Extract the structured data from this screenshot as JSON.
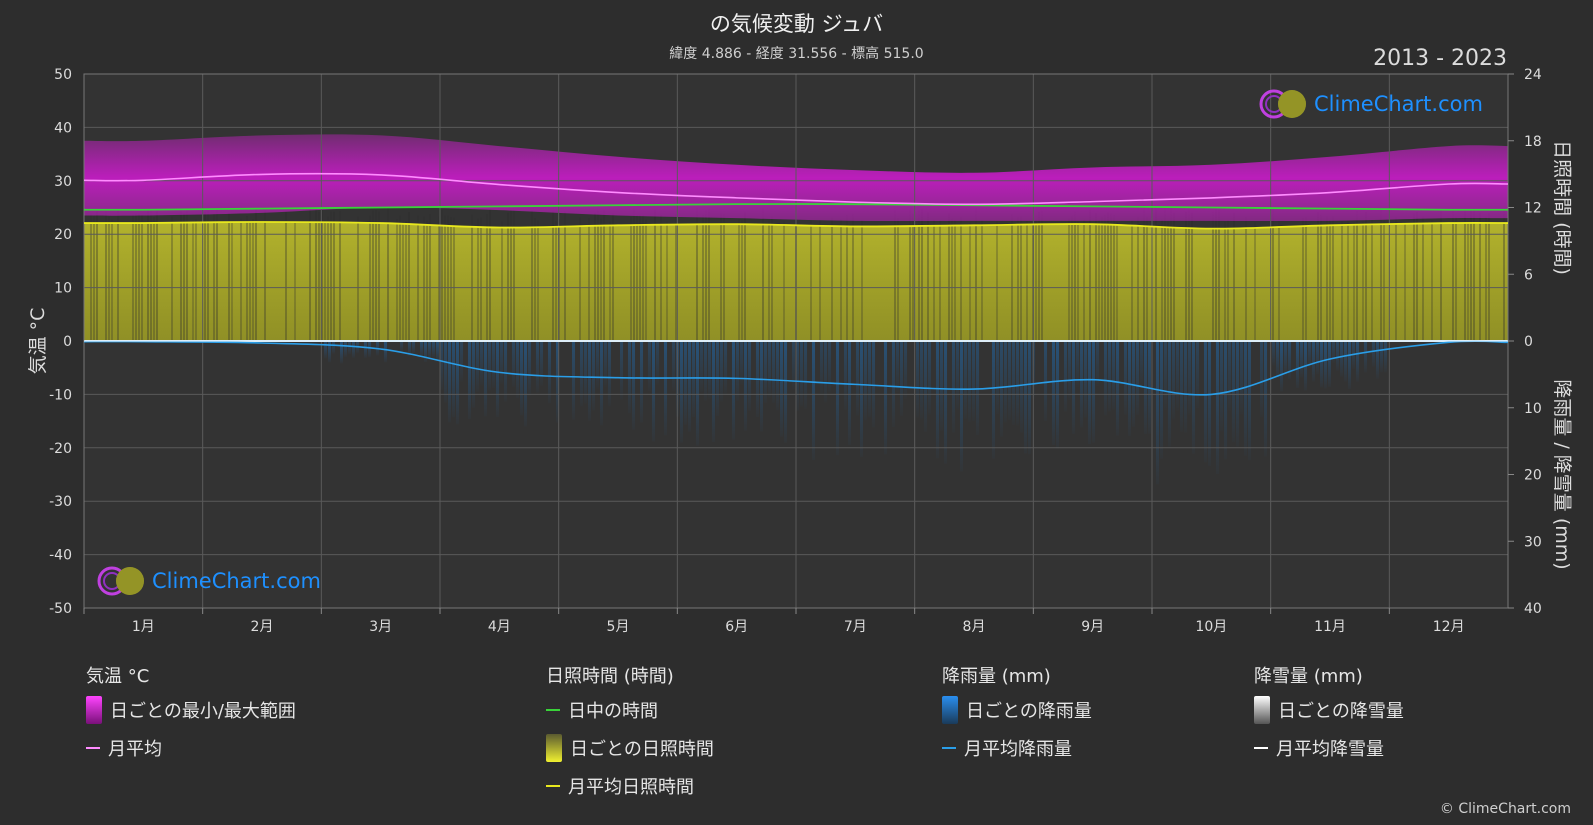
{
  "header": {
    "title": "の気候変動 ジュバ",
    "subtitle": "緯度 4.886 - 経度 31.556 - 標高 515.0",
    "period": "2013 - 2023"
  },
  "brand": {
    "logo_text": "ClimeChart.com",
    "copyright": "© ClimeChart.com"
  },
  "colors": {
    "background": "#2d2d2d",
    "temp_range": "#e21ee2",
    "temp_avg": "#ff8cff",
    "daylight": "#39d339",
    "sunshine_fill": "#b5b52a",
    "sunshine_avg": "#e8e81e",
    "rain": "#1e78c8",
    "rain_avg": "#2a9ee8",
    "snow_avg": "#ffffff"
  },
  "chart_data": {
    "type": "area",
    "categories": [
      "1月",
      "2月",
      "3月",
      "4月",
      "5月",
      "6月",
      "7月",
      "8月",
      "9月",
      "10月",
      "11月",
      "12月"
    ],
    "left_axis": {
      "label": "気温 °C",
      "range": [
        -50,
        50
      ],
      "ticks": [
        "50",
        "40",
        "30",
        "20",
        "10",
        "0",
        "-10",
        "-20",
        "-30",
        "-40",
        "-50"
      ]
    },
    "right_axis_top": {
      "label": "日照時間 (時間)",
      "range": [
        0,
        24
      ],
      "ticks": [
        "24",
        "18",
        "12",
        "6",
        "0"
      ]
    },
    "right_axis_bottom": {
      "label": "降雨量 / 降雪量 (mm)",
      "range": [
        0,
        40
      ],
      "ticks": [
        "0",
        "10",
        "20",
        "30",
        "40"
      ]
    },
    "series": [
      {
        "name": "日ごとの最小/最大範囲",
        "unit": "°C",
        "min": [
          23.5,
          24.0,
          25.0,
          24.5,
          23.5,
          23.0,
          22.5,
          22.5,
          22.5,
          22.5,
          22.5,
          23.0
        ],
        "max": [
          37.5,
          38.5,
          38.5,
          36.5,
          34.5,
          33.0,
          32.0,
          31.5,
          32.5,
          33.0,
          34.5,
          36.5
        ]
      },
      {
        "name": "月平均",
        "unit": "°C",
        "values": [
          30.1,
          31.2,
          31.1,
          29.3,
          27.8,
          26.8,
          26.0,
          25.6,
          26.1,
          26.8,
          27.8,
          29.4
        ]
      },
      {
        "name": "日中の時間",
        "unit": "h",
        "values": [
          11.8,
          11.9,
          12.0,
          12.1,
          12.2,
          12.3,
          12.3,
          12.2,
          12.1,
          12.0,
          11.9,
          11.8
        ]
      },
      {
        "name": "月平均日照時間",
        "unit": "h",
        "values": [
          10.6,
          10.7,
          10.6,
          10.2,
          10.4,
          10.5,
          10.3,
          10.4,
          10.5,
          10.1,
          10.4,
          10.6
        ]
      },
      {
        "name": "月平均降雨量",
        "unit": "mm",
        "values": [
          0.1,
          0.3,
          1.2,
          4.7,
          5.5,
          5.6,
          6.5,
          7.2,
          5.8,
          8.0,
          2.7,
          0.2
        ]
      },
      {
        "name": "月平均降雪量",
        "unit": "mm",
        "values": [
          0,
          0,
          0,
          0,
          0,
          0,
          0,
          0,
          0,
          0,
          0,
          0
        ]
      }
    ]
  },
  "legend": {
    "temp": {
      "title": "気温 °C",
      "range": "日ごとの最小/最大範囲",
      "avg": "月平均"
    },
    "sun": {
      "title": "日照時間 (時間)",
      "daylight": "日中の時間",
      "daily": "日ごとの日照時間",
      "avg": "月平均日照時間"
    },
    "rain": {
      "title": "降雨量 (mm)",
      "daily": "日ごとの降雨量",
      "avg": "月平均降雨量"
    },
    "snow": {
      "title": "降雪量 (mm)",
      "daily": "日ごとの降雪量",
      "avg": "月平均降雪量"
    }
  }
}
